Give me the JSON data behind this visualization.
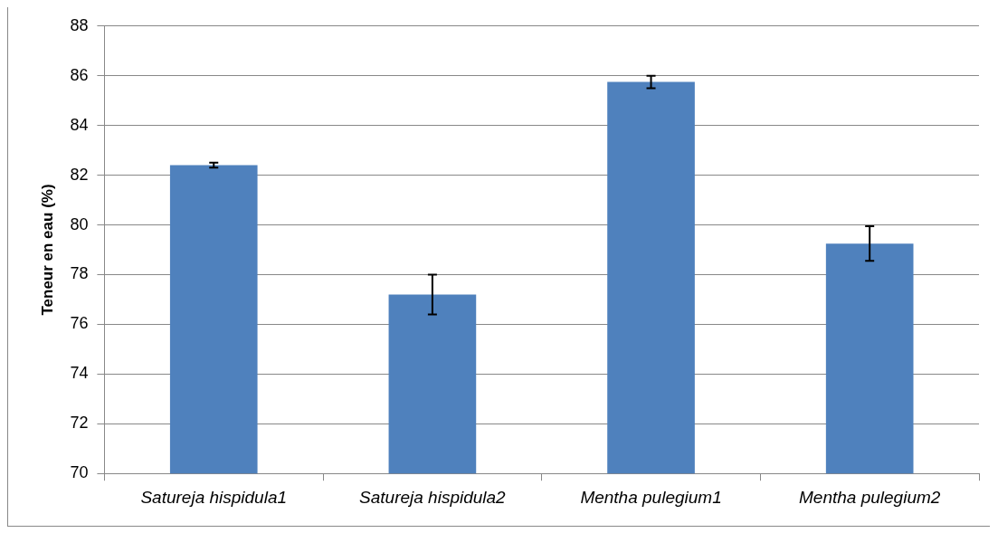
{
  "chart_data": {
    "type": "bar",
    "ylabel": "Teneur en eau (%)",
    "categories": [
      "Satureja hispidula1",
      "Satureja hispidula2",
      "Mentha pulegium1",
      "Mentha pulegium2"
    ],
    "values": [
      82.4,
      77.2,
      85.75,
      79.25
    ],
    "errors": [
      0.1,
      0.8,
      0.25,
      0.7
    ],
    "color": "#4f81bd",
    "ylim": [
      70,
      88
    ],
    "yticks": [
      70,
      72,
      74,
      76,
      78,
      80,
      82,
      84,
      86,
      88
    ],
    "grid": "y"
  }
}
